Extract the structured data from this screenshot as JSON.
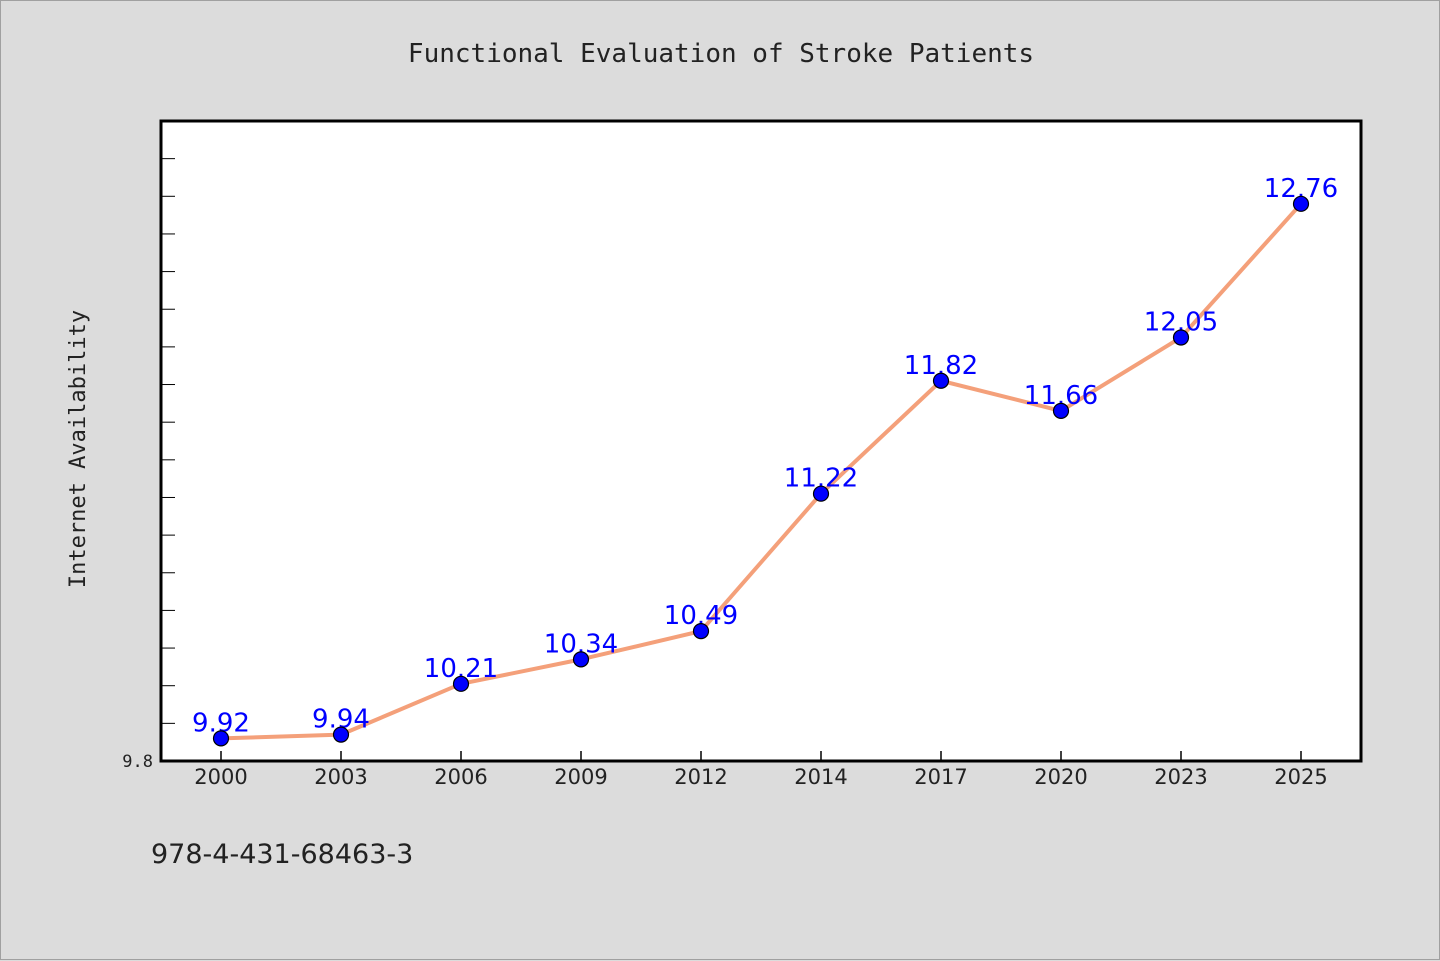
{
  "chart_data": {
    "type": "line",
    "title": "Functional Evaluation of Stroke Patients",
    "xlabel": "",
    "ylabel": "Internet Availability",
    "categories": [
      "2000",
      "2003",
      "2006",
      "2009",
      "2012",
      "2014",
      "2017",
      "2020",
      "2023",
      "2025"
    ],
    "series": [
      {
        "values": [
          9.92,
          9.94,
          10.21,
          10.34,
          10.49,
          11.22,
          11.82,
          11.66,
          12.05,
          12.76
        ],
        "labels": [
          "9.92",
          "9.94",
          "10.21",
          "10.34",
          "10.49",
          "11.22",
          "11.82",
          "11.66",
          "12.05",
          "12.76"
        ],
        "line_color": "#f4a07a",
        "marker_color": "#0000ff"
      }
    ],
    "ylim": [
      9.8,
      13.2
    ],
    "yticks_labeled": [
      "9.8"
    ],
    "grid": false,
    "legend": "none"
  },
  "footer": {
    "isbn": "978-4-431-68463-3"
  },
  "colors": {
    "background": "#dcdcdc",
    "plot_area": "#ffffff",
    "axis": "#000000",
    "line": "#f4a07a",
    "marker": "#0000ff",
    "label": "#0000ff"
  }
}
